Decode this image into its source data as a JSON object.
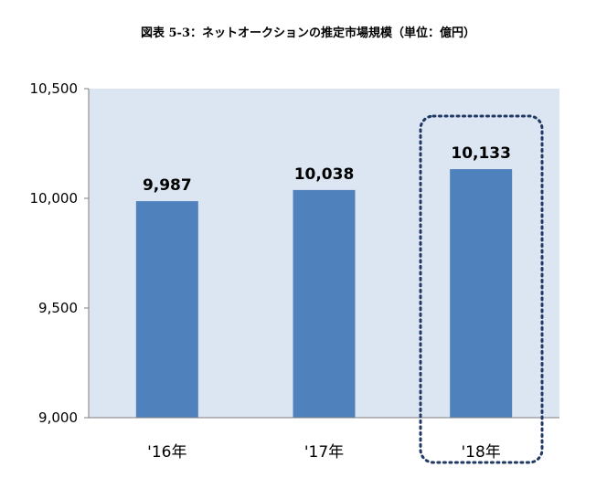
{
  "chart_data": {
    "type": "bar",
    "title": "図表 5-3：ネットオークションの推定市場規模（単位：億円）",
    "xlabel": "",
    "ylabel": "",
    "categories": [
      "'16年",
      "'17年",
      "'18年"
    ],
    "values": [
      9987,
      10038,
      10133
    ],
    "data_labels": [
      "9,987",
      "10,038",
      "10,133"
    ],
    "ylim": [
      9000,
      10500
    ],
    "yticks": [
      9000,
      9500,
      10000,
      10500
    ],
    "ytick_labels": [
      "9,000",
      "9,500",
      "10,000",
      "10,500"
    ],
    "grid": false,
    "legend": "none",
    "highlighted_category": "'18年",
    "colors": {
      "bar": "#4f81bd",
      "plot_background": "#dce6f2",
      "highlight_border": "#1f3864",
      "axis": "#7f7f7f"
    }
  }
}
